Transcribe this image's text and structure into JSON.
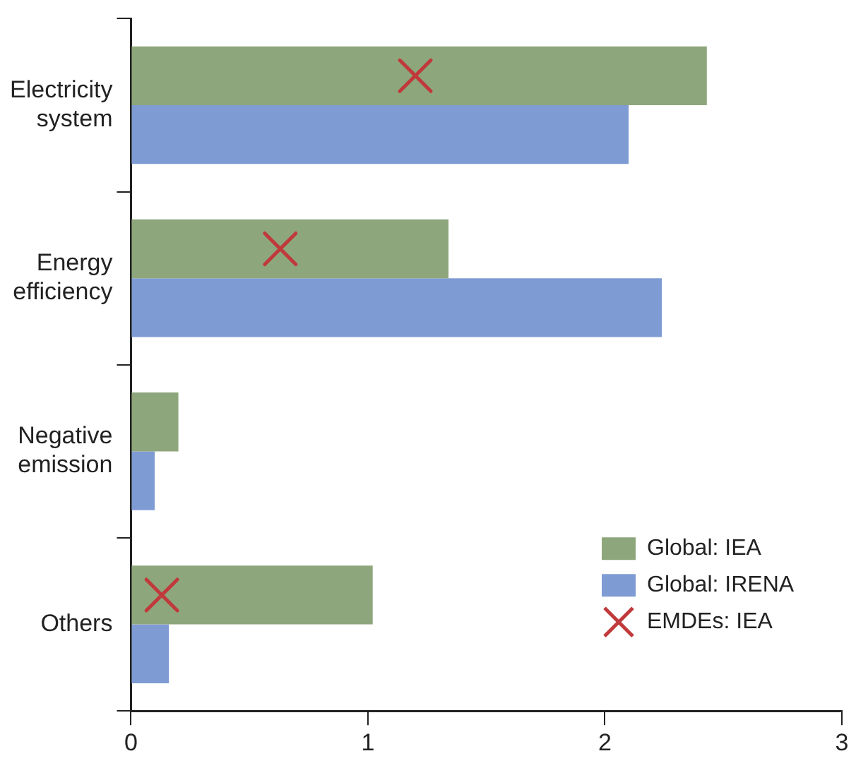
{
  "chart_data": {
    "type": "bar",
    "orientation": "horizontal",
    "categories": [
      "Electricity system",
      "Energy efficiency",
      "Negative emission",
      "Others"
    ],
    "series": [
      {
        "name": "Global: IEA",
        "color": "#8ea67c",
        "values": [
          2.43,
          1.34,
          0.2,
          1.02
        ]
      },
      {
        "name": "Global: IRENA",
        "color": "#7f9bd3",
        "values": [
          2.1,
          2.24,
          0.1,
          0.16
        ]
      },
      {
        "name": "EMDEs: IEA",
        "type": "scatter",
        "marker": "cross",
        "color": "#c0393b",
        "values": [
          1.2,
          0.63,
          null,
          0.13
        ]
      }
    ],
    "xlim": [
      0,
      3
    ],
    "xticks": [
      0,
      1,
      2,
      3
    ],
    "grid": false,
    "legend": "bottom right"
  }
}
